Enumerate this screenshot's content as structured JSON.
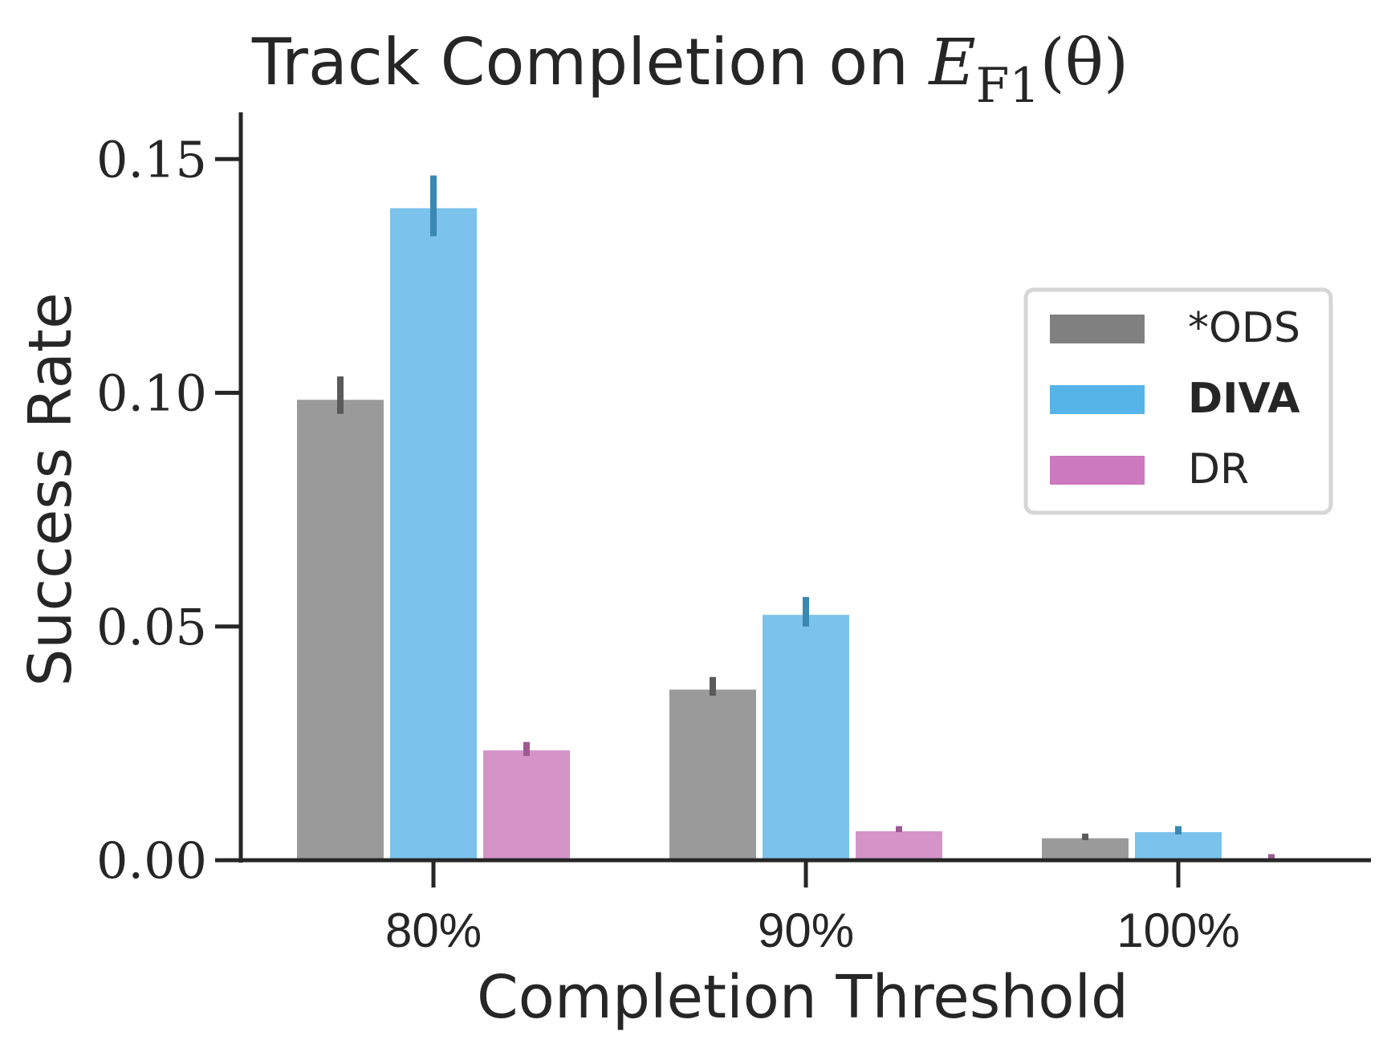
{
  "chart_data": {
    "type": "bar",
    "title": "Track Completion on ",
    "title_math": {
      "base": "E",
      "subscript": "F1",
      "argument": "(θ)"
    },
    "xlabel": "Completion Threshold",
    "ylabel": "Success Rate",
    "categories": [
      "80%",
      "90%",
      "100%"
    ],
    "ylim": [
      0.0,
      0.16
    ],
    "yticks": [
      0.0,
      0.05,
      0.1,
      0.15
    ],
    "ytick_labels": [
      "0.00",
      "0.05",
      "0.10",
      "0.15"
    ],
    "legend_position": "upper right",
    "grid": false,
    "series": [
      {
        "name": "*ODS",
        "color": "#9a9a9a",
        "legend_color": "#808080",
        "err_color": "#5a5a5a",
        "bold": false,
        "values": [
          0.0985,
          0.0365,
          0.0047
        ],
        "err_low": [
          0.0955,
          0.0352,
          0.0043
        ],
        "err_high": [
          0.1035,
          0.0392,
          0.0057
        ]
      },
      {
        "name": "DIVA",
        "color": "#7bc2ec",
        "legend_color": "#56b4e9",
        "err_color": "#3a88b3",
        "bold": true,
        "values": [
          0.1395,
          0.0525,
          0.006
        ],
        "err_low": [
          0.1335,
          0.05,
          0.0055
        ],
        "err_high": [
          0.1465,
          0.0563,
          0.0073
        ]
      },
      {
        "name": "DR",
        "color": "#d494c8",
        "legend_color": "#cc79bf",
        "err_color": "#9e5a92",
        "bold": false,
        "values": [
          0.0235,
          0.0062,
          0.0003
        ],
        "err_low": [
          0.0223,
          0.006,
          0.0001
        ],
        "err_high": [
          0.0253,
          0.0073,
          0.0013
        ]
      }
    ]
  }
}
